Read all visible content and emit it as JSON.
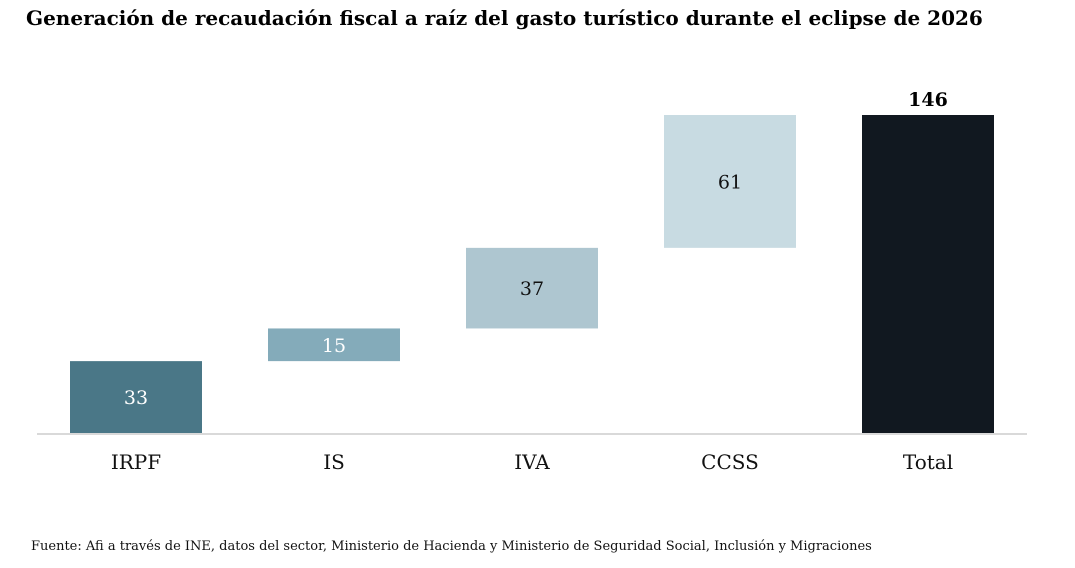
{
  "chart_data": {
    "type": "bar",
    "subtype": "waterfall",
    "title": "Generación de recaudación fiscal a raíz del gasto turístico durante el eclipse de 2026",
    "categories": [
      "IRPF",
      "IS",
      "IVA",
      "CCSS",
      "Total"
    ],
    "values": [
      33,
      15,
      37,
      61,
      146
    ],
    "total_index": 4,
    "ylim": [
      0,
      146
    ],
    "grid": false,
    "legend": "none",
    "colors": [
      "#4a7787",
      "#84abba",
      "#aec6d0",
      "#c8dbe2",
      "#111820"
    ],
    "label_colors": [
      "#ffffff",
      "#ffffff",
      "#111111",
      "#111111",
      "#000000"
    ],
    "source": "Fuente: Afi a través de INE, datos del sector, Ministerio de Hacienda y Ministerio de Seguridad Social, Inclusión y Migraciones"
  }
}
